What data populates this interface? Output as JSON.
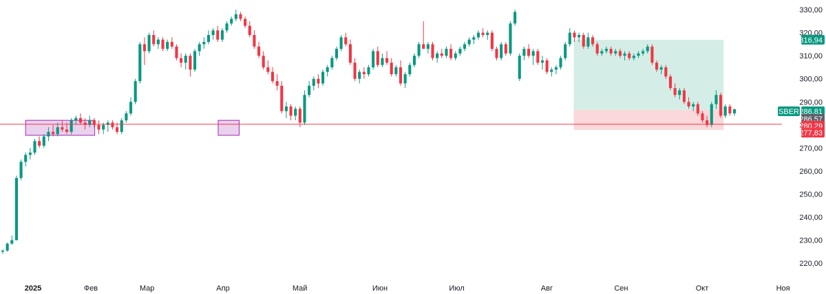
{
  "chart_data": {
    "type": "candlestick",
    "symbol": "SBER",
    "ylim": [
      215,
      333
    ],
    "y_ticks": [
      "330,00",
      "320,00",
      "310,00",
      "300,00",
      "290,00",
      "280,00",
      "270,00",
      "260,00",
      "250,00",
      "240,00",
      "230,00",
      "220,00"
    ],
    "y_tick_values": [
      330,
      320,
      310,
      300,
      290,
      280,
      270,
      260,
      250,
      240,
      230,
      220
    ],
    "x_ticks": [
      {
        "label": "2025",
        "bold": true
      },
      {
        "label": "Фев",
        "bold": false
      },
      {
        "label": "Мар",
        "bold": false
      },
      {
        "label": "Апр",
        "bold": false
      },
      {
        "label": "Май",
        "bold": false
      },
      {
        "label": "Июн",
        "bold": false
      },
      {
        "label": "Июл",
        "bold": false
      },
      {
        "label": "Авг",
        "bold": false
      },
      {
        "label": "Сен",
        "bold": false
      },
      {
        "label": "Окт",
        "bold": false
      },
      {
        "label": "Ноя",
        "bold": false
      }
    ],
    "price_labels": {
      "target": "316,94",
      "current": "286,81",
      "entry": "286,57",
      "line": "280,29",
      "stop": "277,83"
    },
    "price_values": {
      "target": 316.94,
      "current": 286.81,
      "entry": 286.57,
      "line": 280.29,
      "stop": 277.83
    },
    "colors": {
      "up": "#089981",
      "down": "#f23645",
      "line": "#f23645",
      "profit_zone": "#d4eee7",
      "loss_zone": "#fbd8da",
      "box_fill": "#e1bee7",
      "box_border": "#9c27b0",
      "badge_gray": "#5d606b",
      "badge_green": "#089981",
      "badge_red": "#f23645"
    },
    "horizontal_line": 280.29,
    "boxes": [
      {
        "x0": 0.033,
        "x1": 0.122,
        "y_low": 275.5,
        "y_high": 282.0
      },
      {
        "x0": 0.281,
        "x1": 0.308,
        "y_low": 275.5,
        "y_high": 282.0
      }
    ],
    "position": {
      "x0": 0.739,
      "x1": 0.932,
      "entry": 286.57,
      "target": 316.94,
      "stop": 277.83
    },
    "candles": [
      [
        225.0,
        226.0,
        224.0,
        225.5
      ],
      [
        225.5,
        229.0,
        225.0,
        228.5
      ],
      [
        228.5,
        232.0,
        228.0,
        230.0
      ],
      [
        230.0,
        258.0,
        230.0,
        257.0
      ],
      [
        257.0,
        265.0,
        256.0,
        264.0
      ],
      [
        264.0,
        268.0,
        262.0,
        267.0
      ],
      [
        267.0,
        270.0,
        265.0,
        268.0
      ],
      [
        268.0,
        274.0,
        267.0,
        273.0
      ],
      [
        273.0,
        275.0,
        270.0,
        271.0
      ],
      [
        271.0,
        276.0,
        270.0,
        275.0
      ],
      [
        275.0,
        279.0,
        273.0,
        277.0
      ],
      [
        277.0,
        280.0,
        275.0,
        276.0
      ],
      [
        276.0,
        281.0,
        275.0,
        279.0
      ],
      [
        279.0,
        282.0,
        277.0,
        278.0
      ],
      [
        278.0,
        281.0,
        276.0,
        277.0
      ],
      [
        277.0,
        283.0,
        276.0,
        282.0
      ],
      [
        282.0,
        284.0,
        280.0,
        283.0
      ],
      [
        283.0,
        285.0,
        280.0,
        281.0
      ],
      [
        281.0,
        283.0,
        278.0,
        280.0
      ],
      [
        280.0,
        284.0,
        279.0,
        282.0
      ],
      [
        282.0,
        283.0,
        279.0,
        280.0
      ],
      [
        280.0,
        282.0,
        276.0,
        278.0
      ],
      [
        278.0,
        281.0,
        276.0,
        280.0
      ],
      [
        280.0,
        282.0,
        277.0,
        281.0
      ],
      [
        281.0,
        282.0,
        278.0,
        279.0
      ],
      [
        279.0,
        281.0,
        276.0,
        277.0
      ],
      [
        277.0,
        283.0,
        276.0,
        282.0
      ],
      [
        282.0,
        286.0,
        281.0,
        285.0
      ],
      [
        285.0,
        292.0,
        284.0,
        290.0
      ],
      [
        290.0,
        300.0,
        289.0,
        299.0
      ],
      [
        299.0,
        316.0,
        298.0,
        315.0
      ],
      [
        315.0,
        318.0,
        306.0,
        312.0
      ],
      [
        312.0,
        320.0,
        311.0,
        319.0
      ],
      [
        319.0,
        321.0,
        314.0,
        315.0
      ],
      [
        315.0,
        318.0,
        313.0,
        317.0
      ],
      [
        317.0,
        318.0,
        312.0,
        313.0
      ],
      [
        313.0,
        317.0,
        312.0,
        316.0
      ],
      [
        316.0,
        318.0,
        313.0,
        314.0
      ],
      [
        314.0,
        315.0,
        308.0,
        309.0
      ],
      [
        309.0,
        311.0,
        305.0,
        307.0
      ],
      [
        307.0,
        311.0,
        304.0,
        310.0
      ],
      [
        310.0,
        311.0,
        301.0,
        304.0
      ],
      [
        304.0,
        313.0,
        303.0,
        312.0
      ],
      [
        312.0,
        316.0,
        310.0,
        315.0
      ],
      [
        315.0,
        318.0,
        313.0,
        316.0
      ],
      [
        316.0,
        321.0,
        315.0,
        319.0
      ],
      [
        319.0,
        322.0,
        317.0,
        321.0
      ],
      [
        321.0,
        323.0,
        316.0,
        317.0
      ],
      [
        317.0,
        322.0,
        316.0,
        321.0
      ],
      [
        321.0,
        325.0,
        320.0,
        324.0
      ],
      [
        324.0,
        327.0,
        323.0,
        326.0
      ],
      [
        326.0,
        330.0,
        325.0,
        328.0
      ],
      [
        328.0,
        329.0,
        325.0,
        326.0
      ],
      [
        326.0,
        327.0,
        322.0,
        323.0
      ],
      [
        323.0,
        325.0,
        318.0,
        319.0
      ],
      [
        319.0,
        321.0,
        313.0,
        314.0
      ],
      [
        314.0,
        316.0,
        309.0,
        310.0
      ],
      [
        310.0,
        312.0,
        304.0,
        305.0
      ],
      [
        305.0,
        308.0,
        302.0,
        303.0
      ],
      [
        303.0,
        305.0,
        298.0,
        299.0
      ],
      [
        299.0,
        302.0,
        295.0,
        297.0
      ],
      [
        297.0,
        299.0,
        285.0,
        286.0
      ],
      [
        286.0,
        290.0,
        283.0,
        288.0
      ],
      [
        288.0,
        289.0,
        282.0,
        284.0
      ],
      [
        284.0,
        288.0,
        282.0,
        287.0
      ],
      [
        287.0,
        288.0,
        279.0,
        281.0
      ],
      [
        281.0,
        295.0,
        280.0,
        293.0
      ],
      [
        293.0,
        299.0,
        292.0,
        297.0
      ],
      [
        297.0,
        301.0,
        295.0,
        300.0
      ],
      [
        300.0,
        302.0,
        296.0,
        298.0
      ],
      [
        298.0,
        304.0,
        297.0,
        303.0
      ],
      [
        303.0,
        306.0,
        301.0,
        305.0
      ],
      [
        305.0,
        310.0,
        304.0,
        309.0
      ],
      [
        309.0,
        314.0,
        308.0,
        313.0
      ],
      [
        313.0,
        319.0,
        312.0,
        318.0
      ],
      [
        318.0,
        320.0,
        314.0,
        315.0
      ],
      [
        315.0,
        317.0,
        306.0,
        307.0
      ],
      [
        307.0,
        309.0,
        299.0,
        300.0
      ],
      [
        300.0,
        304.0,
        298.0,
        303.0
      ],
      [
        303.0,
        305.0,
        300.0,
        302.0
      ],
      [
        302.0,
        306.0,
        301.0,
        305.0
      ],
      [
        305.0,
        313.0,
        304.0,
        312.0
      ],
      [
        312.0,
        314.0,
        305.0,
        306.0
      ],
      [
        306.0,
        311.0,
        305.0,
        309.0
      ],
      [
        309.0,
        312.0,
        306.0,
        307.0
      ],
      [
        307.0,
        309.0,
        301.0,
        302.0
      ],
      [
        302.0,
        306.0,
        301.0,
        305.0
      ],
      [
        305.0,
        308.0,
        297.0,
        298.0
      ],
      [
        298.0,
        303.0,
        296.0,
        302.0
      ],
      [
        302.0,
        307.0,
        301.0,
        306.0
      ],
      [
        306.0,
        311.0,
        305.0,
        310.0
      ],
      [
        310.0,
        316.0,
        309.0,
        315.0
      ],
      [
        315.0,
        325.0,
        314.0,
        313.0
      ],
      [
        313.0,
        316.0,
        311.0,
        315.0
      ],
      [
        315.0,
        316.0,
        308.0,
        309.0
      ],
      [
        309.0,
        312.0,
        307.0,
        311.0
      ],
      [
        311.0,
        313.0,
        309.0,
        310.0
      ],
      [
        310.0,
        314.0,
        309.0,
        313.0
      ],
      [
        313.0,
        315.0,
        308.0,
        309.0
      ],
      [
        309.0,
        312.0,
        308.0,
        311.0
      ],
      [
        311.0,
        314.0,
        310.0,
        313.0
      ],
      [
        313.0,
        316.0,
        312.0,
        315.0
      ],
      [
        315.0,
        318.0,
        314.0,
        317.0
      ],
      [
        317.0,
        319.0,
        315.0,
        318.0
      ],
      [
        318.0,
        321.0,
        317.0,
        320.0
      ],
      [
        320.0,
        322.0,
        318.0,
        319.0
      ],
      [
        319.0,
        321.0,
        317.0,
        320.0
      ],
      [
        320.0,
        321.0,
        312.0,
        313.0
      ],
      [
        313.0,
        314.0,
        308.0,
        309.0
      ],
      [
        309.0,
        316.0,
        308.0,
        315.0
      ],
      [
        315.0,
        316.0,
        310.0,
        311.0
      ],
      [
        311.0,
        325.0,
        310.0,
        324.0
      ],
      [
        324.0,
        330.0,
        323.0,
        329.0
      ],
      [
        300.0,
        311.0,
        299.0,
        310.0
      ],
      [
        310.0,
        314.0,
        308.0,
        313.0
      ],
      [
        313.0,
        315.0,
        309.0,
        310.0
      ],
      [
        310.0,
        313.0,
        306.0,
        312.0
      ],
      [
        312.0,
        313.0,
        306.0,
        307.0
      ],
      [
        307.0,
        310.0,
        304.0,
        308.0
      ],
      [
        308.0,
        309.0,
        302.0,
        303.0
      ],
      [
        303.0,
        305.0,
        301.0,
        304.0
      ],
      [
        304.0,
        306.0,
        302.0,
        305.0
      ],
      [
        305.0,
        310.0,
        304.0,
        309.0
      ],
      [
        309.0,
        316.0,
        308.0,
        315.0
      ],
      [
        315.0,
        322.0,
        314.0,
        320.0
      ],
      [
        320.0,
        321.0,
        316.0,
        318.0
      ],
      [
        318.0,
        320.0,
        316.0,
        319.0
      ],
      [
        319.0,
        320.0,
        313.0,
        314.0
      ],
      [
        314.0,
        320.0,
        313.0,
        318.0
      ],
      [
        318.0,
        319.0,
        314.0,
        315.0
      ],
      [
        315.0,
        316.0,
        310.0,
        311.0
      ],
      [
        311.0,
        313.0,
        310.0,
        312.0
      ],
      [
        312.0,
        314.0,
        311.0,
        313.0
      ],
      [
        313.0,
        314.0,
        310.0,
        311.0
      ],
      [
        311.0,
        313.0,
        310.0,
        312.0
      ],
      [
        312.0,
        313.0,
        309.0,
        310.0
      ],
      [
        310.0,
        312.0,
        308.0,
        311.0
      ],
      [
        311.0,
        312.0,
        308.0,
        309.0
      ],
      [
        309.0,
        311.0,
        308.0,
        310.0
      ],
      [
        310.0,
        312.0,
        309.0,
        311.0
      ],
      [
        311.0,
        313.0,
        310.0,
        312.0
      ],
      [
        312.0,
        315.0,
        311.0,
        314.0
      ],
      [
        314.0,
        315.0,
        306.0,
        307.0
      ],
      [
        307.0,
        308.0,
        303.0,
        304.0
      ],
      [
        304.0,
        306.0,
        302.0,
        305.0
      ],
      [
        305.0,
        306.0,
        300.0,
        301.0
      ],
      [
        301.0,
        302.0,
        295.0,
        296.0
      ],
      [
        296.0,
        298.0,
        292.0,
        293.0
      ],
      [
        293.0,
        296.0,
        291.0,
        295.0
      ],
      [
        295.0,
        296.0,
        289.0,
        290.0
      ],
      [
        290.0,
        292.0,
        287.0,
        288.0
      ],
      [
        288.0,
        290.0,
        286.0,
        289.0
      ],
      [
        289.0,
        290.0,
        284.0,
        285.0
      ],
      [
        285.0,
        286.0,
        281.0,
        282.0
      ],
      [
        282.0,
        284.0,
        279.0,
        280.0
      ],
      [
        280.0,
        290.0,
        279.0,
        289.0
      ],
      [
        289.0,
        295.0,
        287.0,
        293.0
      ],
      [
        293.0,
        294.0,
        283.0,
        284.0
      ],
      [
        284.0,
        289.0,
        283.0,
        288.0
      ],
      [
        288.0,
        289.0,
        284.0,
        285.0
      ],
      [
        285.0,
        287.0,
        284.0,
        286.8
      ]
    ]
  }
}
